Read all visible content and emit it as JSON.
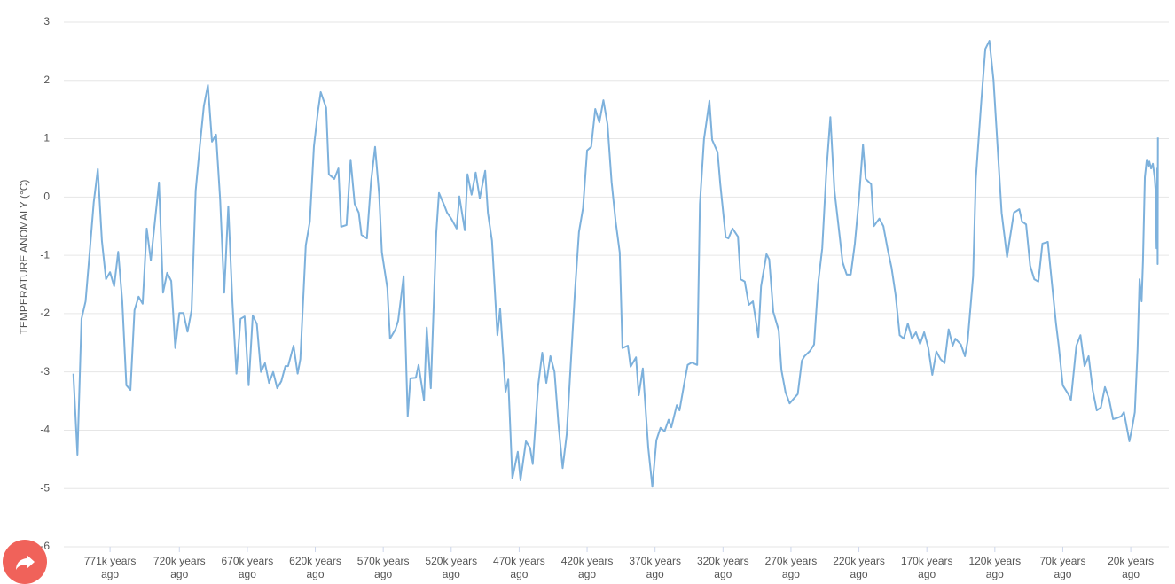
{
  "chart_data": {
    "type": "line",
    "y_label": "TEMPERATURE ANOMALY (°C)",
    "color": "#7db1dc",
    "grid": true,
    "xlim": [
      805,
      -8
    ],
    "ylim": [
      -6,
      3
    ],
    "yticks": [
      -6,
      -5,
      -4,
      -3,
      -2,
      -1,
      0,
      1,
      2,
      3
    ],
    "xticks": [
      {
        "value": 771,
        "label": "771k years ago"
      },
      {
        "value": 720,
        "label": "720k years ago"
      },
      {
        "value": 670,
        "label": "670k years ago"
      },
      {
        "value": 620,
        "label": "620k years ago"
      },
      {
        "value": 570,
        "label": "570k years ago"
      },
      {
        "value": 520,
        "label": "520k years ago"
      },
      {
        "value": 470,
        "label": "470k years ago"
      },
      {
        "value": 420,
        "label": "420k years ago"
      },
      {
        "value": 370,
        "label": "370k years ago"
      },
      {
        "value": 320,
        "label": "320k years ago"
      },
      {
        "value": 270,
        "label": "270k years ago"
      },
      {
        "value": 220,
        "label": "220k years ago"
      },
      {
        "value": 170,
        "label": "170k years ago"
      },
      {
        "value": 120,
        "label": "120k years ago"
      },
      {
        "value": 70,
        "label": "70k years ago"
      },
      {
        "value": 20,
        "label": "20k years ago"
      }
    ],
    "x": [
      798,
      795,
      792,
      789,
      786,
      783,
      780,
      777,
      774,
      771,
      768,
      765,
      762,
      759,
      756,
      753,
      750,
      747,
      744,
      741,
      738,
      735,
      732,
      729,
      726,
      723,
      720,
      717,
      714,
      711,
      708,
      705,
      702,
      699,
      696,
      693,
      690,
      687,
      684,
      681,
      678,
      675,
      672,
      669,
      666,
      663,
      660,
      657,
      654,
      651,
      648,
      645,
      642,
      640,
      636,
      633,
      631,
      627,
      624,
      621,
      618,
      616,
      612,
      610,
      606,
      603,
      601,
      597,
      594,
      591,
      588,
      586,
      582,
      579,
      576,
      573,
      571,
      567,
      565,
      561,
      559,
      555,
      552,
      550,
      546,
      544,
      540,
      538,
      535,
      531,
      529,
      525,
      523,
      520,
      516,
      514,
      510,
      508,
      505,
      502,
      499,
      495,
      493,
      490,
      486,
      484,
      480,
      478,
      475,
      471,
      469,
      465,
      462,
      460,
      456,
      453,
      450,
      447,
      444,
      441,
      438,
      435,
      432,
      429,
      426,
      423,
      420,
      417,
      414,
      411,
      408,
      405,
      402,
      399,
      396,
      394,
      390,
      388,
      384,
      382,
      379,
      375,
      372,
      369,
      366,
      363,
      360,
      358,
      354,
      352,
      348,
      346,
      343,
      339,
      337,
      334,
      330,
      328,
      324,
      322,
      318,
      316,
      313,
      309,
      307,
      304,
      301,
      298,
      294,
      292,
      288,
      286,
      283,
      279,
      277,
      274,
      271,
      268,
      265,
      262,
      260,
      256,
      253,
      250,
      247,
      244,
      241,
      238,
      235,
      232,
      229,
      226,
      223,
      220,
      217,
      215,
      211,
      209,
      205,
      202,
      199,
      196,
      193,
      190,
      187,
      184,
      181,
      178,
      175,
      172,
      169,
      166,
      163,
      160,
      157,
      154,
      151,
      149,
      145,
      142,
      140,
      136,
      134,
      130,
      127,
      124,
      121,
      118,
      115,
      111,
      109,
      106,
      102,
      100,
      97,
      94,
      91,
      88,
      85,
      81,
      78,
      75,
      73,
      70,
      66,
      64,
      60,
      57,
      54,
      51,
      48,
      45,
      42,
      39,
      36,
      33,
      30,
      27,
      25,
      21,
      19,
      17,
      15,
      13.5,
      12,
      11,
      9.6,
      8.2,
      7,
      6.3,
      5,
      3.7,
      2.4,
      1.7,
      1,
      0.5,
      0.2,
      0
    ],
    "values": [
      -3.03,
      -4.42,
      -2.09,
      -1.79,
      -0.95,
      -0.09,
      0.48,
      -0.75,
      -1.41,
      -1.29,
      -1.53,
      -0.94,
      -1.79,
      -3.23,
      -3.31,
      -1.94,
      -1.71,
      -1.83,
      -0.54,
      -1.09,
      -0.42,
      0.25,
      -1.64,
      -1.3,
      -1.44,
      -2.59,
      -1.99,
      -1.99,
      -2.31,
      -1.94,
      0.11,
      0.86,
      1.56,
      1.92,
      0.95,
      1.07,
      -0.04,
      -1.64,
      -0.16,
      -1.79,
      -3.03,
      -2.09,
      -2.05,
      -3.23,
      -2.03,
      -2.18,
      -3,
      -2.85,
      -3.19,
      -3,
      -3.28,
      -3.16,
      -2.9,
      -2.9,
      -2.55,
      -3.03,
      -2.78,
      -0.83,
      -0.42,
      0.87,
      1.48,
      1.8,
      1.53,
      0.39,
      0.31,
      0.49,
      -0.51,
      -0.48,
      0.64,
      -0.12,
      -0.27,
      -0.65,
      -0.71,
      0.26,
      0.86,
      0.04,
      -0.95,
      -1.56,
      -2.43,
      -2.27,
      -2.12,
      -1.36,
      -3.76,
      -3.11,
      -3.1,
      -2.88,
      -3.49,
      -2.24,
      -3.28,
      -0.62,
      0.07,
      -0.15,
      -0.27,
      -0.37,
      -0.54,
      0.01,
      -0.57,
      0.39,
      0.04,
      0.42,
      -0.02,
      0.45,
      -0.27,
      -0.75,
      -2.37,
      -1.91,
      -3.34,
      -3.13,
      -4.83,
      -4.37,
      -4.86,
      -4.19,
      -4.3,
      -4.58,
      -3.23,
      -2.67,
      -3.19,
      -2.73,
      -3,
      -3.92,
      -4.65,
      -4.07,
      -2.85,
      -1.64,
      -0.6,
      -0.19,
      0.8,
      0.86,
      1.51,
      1.28,
      1.66,
      1.25,
      0.26,
      -0.42,
      -0.95,
      -2.59,
      -2.55,
      -2.91,
      -2.75,
      -3.4,
      -2.94,
      -4.3,
      -4.97,
      -4.17,
      -3.96,
      -4.02,
      -3.82,
      -3.95,
      -3.57,
      -3.66,
      -3.13,
      -2.88,
      -2.84,
      -2.88,
      -0.12,
      0.99,
      1.65,
      0.98,
      0.77,
      0.22,
      -0.69,
      -0.71,
      -0.54,
      -0.68,
      -1.41,
      -1.45,
      -1.85,
      -1.79,
      -2.4,
      -1.53,
      -0.98,
      -1.07,
      -1.97,
      -2.29,
      -2.97,
      -3.35,
      -3.54,
      -3.46,
      -3.38,
      -2.81,
      -2.73,
      -2.64,
      -2.53,
      -1.48,
      -0.88,
      0.42,
      1.37,
      0.11,
      -0.5,
      -1.12,
      -1.33,
      -1.33,
      -0.8,
      -0.04,
      0.9,
      0.31,
      0.22,
      -0.5,
      -0.37,
      -0.5,
      -0.88,
      -1.21,
      -1.68,
      -2.37,
      -2.43,
      -2.17,
      -2.43,
      -2.32,
      -2.52,
      -2.32,
      -2.58,
      -3.05,
      -2.65,
      -2.78,
      -2.85,
      -2.27,
      -2.55,
      -2.43,
      -2.53,
      -2.73,
      -2.47,
      -1.36,
      0.31,
      1.63,
      2.54,
      2.68,
      2.01,
      0.87,
      -0.27,
      -1.03,
      -0.72,
      -0.27,
      -0.21,
      -0.42,
      -0.47,
      -1.18,
      -1.41,
      -1.45,
      -0.8,
      -0.77,
      -1.48,
      -2.17,
      -2.55,
      -3.23,
      -3.38,
      -3.48,
      -2.55,
      -2.37,
      -2.9,
      -2.73,
      -3.31,
      -3.66,
      -3.61,
      -3.26,
      -3.46,
      -3.81,
      -3.79,
      -3.76,
      -3.69,
      -4.19,
      -3.96,
      -3.69,
      -2.63,
      -1.41,
      -1.79,
      -1.1,
      0.34,
      0.64,
      0.52,
      0.61,
      0.49,
      0.57,
      0.34,
      0.11,
      -0.88,
      0.49,
      -1.15,
      1.02
    ]
  }
}
